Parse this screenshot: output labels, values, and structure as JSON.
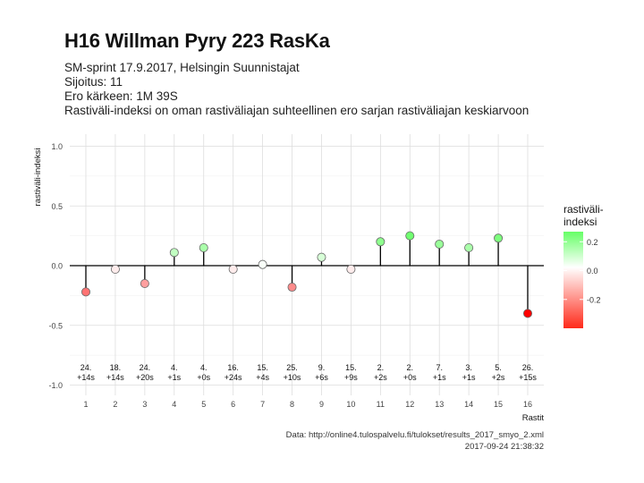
{
  "header": {
    "title": "H16 Willman Pyry 223 RasKa",
    "subtitle_1": "SM-sprint 17.9.2017, Helsingin Suunnistajat",
    "subtitle_2": "Sijoitus: 11",
    "subtitle_3": "Ero kärkeen: 1M 39S",
    "subtitle_4": "Rastiväli-indeksi on oman rastiväliajan suhteellinen ero sarjan rastiväliajan keskiarvoon"
  },
  "footer": {
    "source": "Data: http://online4.tulospalvelu.fi/tulokset/results_2017_smyo_2.xml",
    "timestamp": "2017-09-24 21:38:32"
  },
  "chart_data": {
    "type": "lollipop",
    "xlabel": "Rastit",
    "ylabel": "rastiväli-indeksi",
    "ylim": [
      -1.0,
      1.0
    ],
    "yticks": [
      "1.0",
      "0.5",
      "0.0",
      "-0.5",
      "-1.0"
    ],
    "ytick_values": [
      1.0,
      0.5,
      0.0,
      -0.5,
      -1.0
    ],
    "x": [
      1,
      2,
      3,
      4,
      5,
      6,
      7,
      8,
      9,
      10,
      11,
      12,
      13,
      14,
      15,
      16
    ],
    "values": [
      -0.22,
      -0.03,
      -0.15,
      0.11,
      0.15,
      -0.03,
      0.01,
      -0.18,
      0.07,
      -0.03,
      0.2,
      0.25,
      0.18,
      0.15,
      0.23,
      -0.4
    ],
    "label_rank": [
      "24.",
      "18.",
      "24.",
      "4.",
      "4.",
      "16.",
      "15.",
      "25.",
      "9.",
      "15.",
      "2.",
      "2.",
      "7.",
      "3.",
      "5.",
      "26."
    ],
    "label_diff": [
      "+14s",
      "+14s",
      "+20s",
      "+1s",
      "+0s",
      "+24s",
      "+4s",
      "+10s",
      "+6s",
      "+9s",
      "+2s",
      "+0s",
      "+1s",
      "+1s",
      "+2s",
      "+15s"
    ],
    "grid": true,
    "legend": {
      "title_line1": "rastiväli-",
      "title_line2": "indeksi",
      "ticks": [
        "0.2",
        "0.0",
        "-0.2"
      ],
      "tick_values": [
        0.2,
        0.0,
        -0.2
      ],
      "range": [
        -0.4,
        0.27
      ],
      "position": "right"
    },
    "colors": {
      "positive": "#66ff66",
      "zero": "#ffffff",
      "negative": "#ff0000",
      "baseline": "#000000",
      "grid": "#dddddd"
    }
  }
}
